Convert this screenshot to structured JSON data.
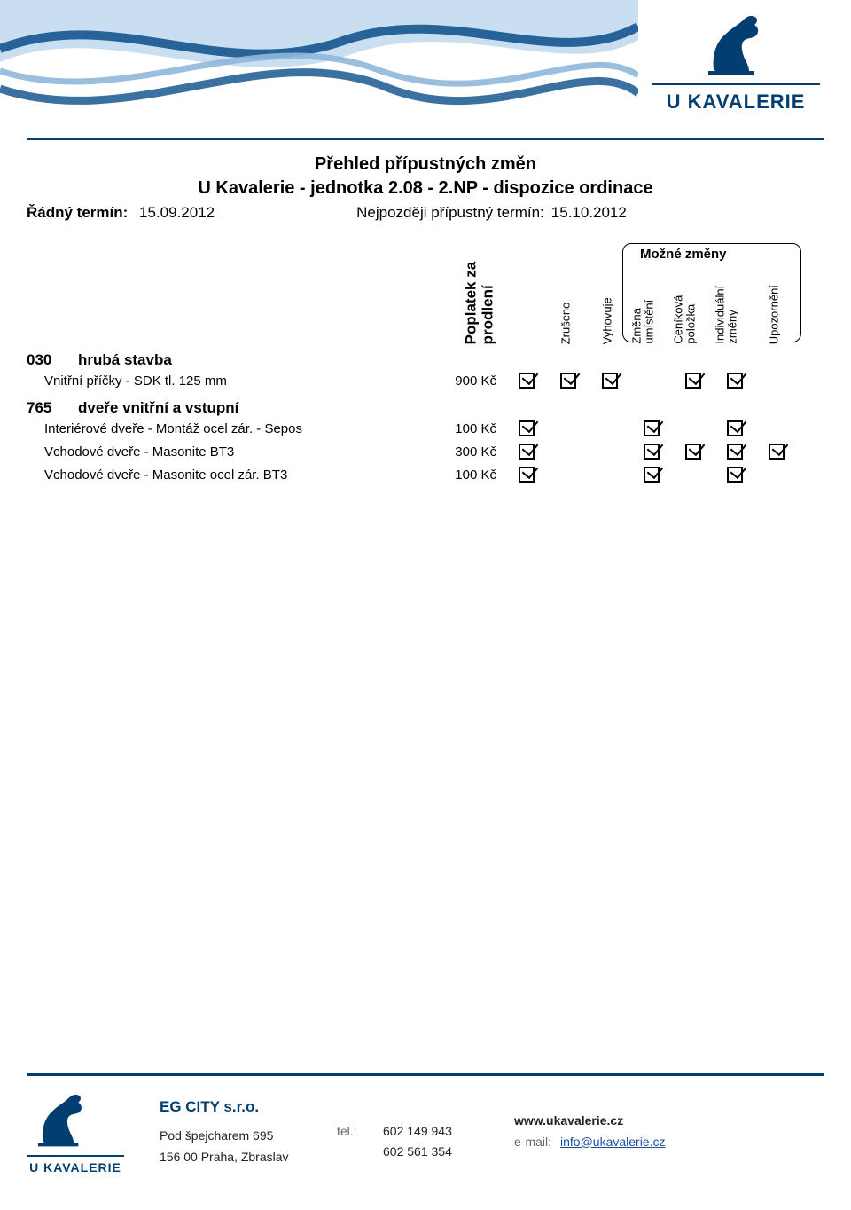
{
  "brand": {
    "name": "U KAVALERIE",
    "colors": {
      "primary": "#023e70",
      "wave1": "#0a4e8a",
      "wave2": "#c9def0",
      "wave3": "#8fb7d9"
    }
  },
  "title": {
    "line1": "Přehled přípustných změn",
    "line2": "U Kavalerie - jednotka 2.08 - 2.NP - dispozice ordinace"
  },
  "meta": {
    "left_label": "Řádný termín:",
    "left_date": "15.09.2012",
    "right_label": "Nejpozději přípustný termín:",
    "right_date": "15.10.2012"
  },
  "column_headers": {
    "poplatek": "Poplatek za\nprodlení",
    "mozne_zmeny": "Možné změny",
    "cols": [
      "Zrušeno",
      "Vyhovuje",
      "Změna\numístění",
      "Ceníková\npoložka",
      "Individuální\nzměny",
      "Upozornění"
    ]
  },
  "sections": [
    {
      "code": "030",
      "title": "hrubá stavba",
      "rows": [
        {
          "name": "Vnitřní příčky - SDK tl. 125 mm",
          "price": "900 Kč",
          "checks": [
            true,
            true,
            true,
            false,
            true,
            true,
            false
          ]
        }
      ]
    },
    {
      "code": "765",
      "title": "dveře vnitřní a vstupní",
      "rows": [
        {
          "name": "Interiérové dveře - Montáž ocel zár. - Sepos",
          "price": "100 Kč",
          "checks": [
            true,
            false,
            false,
            true,
            false,
            true,
            false
          ]
        },
        {
          "name": "Vchodové dveře - Masonite BT3",
          "price": "300 Kč",
          "checks": [
            true,
            false,
            false,
            true,
            true,
            true,
            true
          ]
        },
        {
          "name": "Vchodové dveře - Masonite ocel zár. BT3",
          "price": "100 Kč",
          "checks": [
            true,
            false,
            false,
            true,
            false,
            true,
            false
          ]
        }
      ]
    }
  ],
  "footer": {
    "company": "EG CITY s.r.o.",
    "address_line1": "Pod špejcharem 695",
    "address_line2": "156 00 Praha, Zbraslav",
    "tel_label": "tel.:",
    "tel1": "602 149 943",
    "tel2": "602 561 354",
    "web": "www.ukavalerie.cz",
    "email_label": "e-mail:",
    "email": "info@ukavalerie.cz"
  }
}
